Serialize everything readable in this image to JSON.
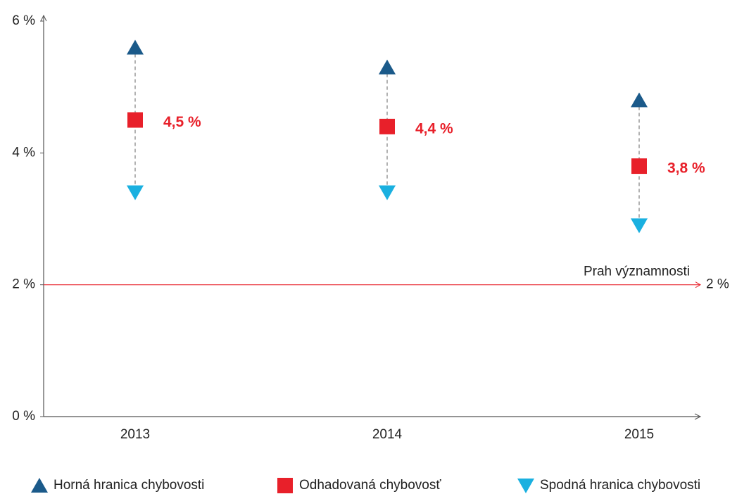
{
  "chart_data": {
    "type": "errorpoint",
    "categories": [
      "2013",
      "2014",
      "2015"
    ],
    "series": [
      {
        "name": "Horná hranica chybovosti",
        "color": "#1b5a8a",
        "marker": "triangle-up",
        "values": [
          5.6,
          5.3,
          4.8
        ]
      },
      {
        "name": "Odhadovaná chybovosť",
        "color": "#e8202a",
        "marker": "square",
        "values": [
          4.5,
          4.4,
          3.8
        ],
        "value_labels": [
          "4,5 %",
          "4,4 %",
          "3,8 %"
        ]
      },
      {
        "name": "Spodná hranica chybovosti",
        "color": "#1ab0e0",
        "marker": "triangle-down",
        "values": [
          3.4,
          3.4,
          2.9
        ]
      }
    ],
    "threshold": {
      "value": 2,
      "label": "Prah významnosti",
      "value_label": "2 %",
      "color": "#e8202a"
    },
    "ylim": [
      0,
      6
    ],
    "yticks": [
      {
        "value": 0,
        "label": "0 %"
      },
      {
        "value": 2,
        "label": "2 %"
      },
      {
        "value": 4,
        "label": "4 %"
      },
      {
        "value": 6,
        "label": "6 %"
      }
    ],
    "legend": "bottom"
  }
}
